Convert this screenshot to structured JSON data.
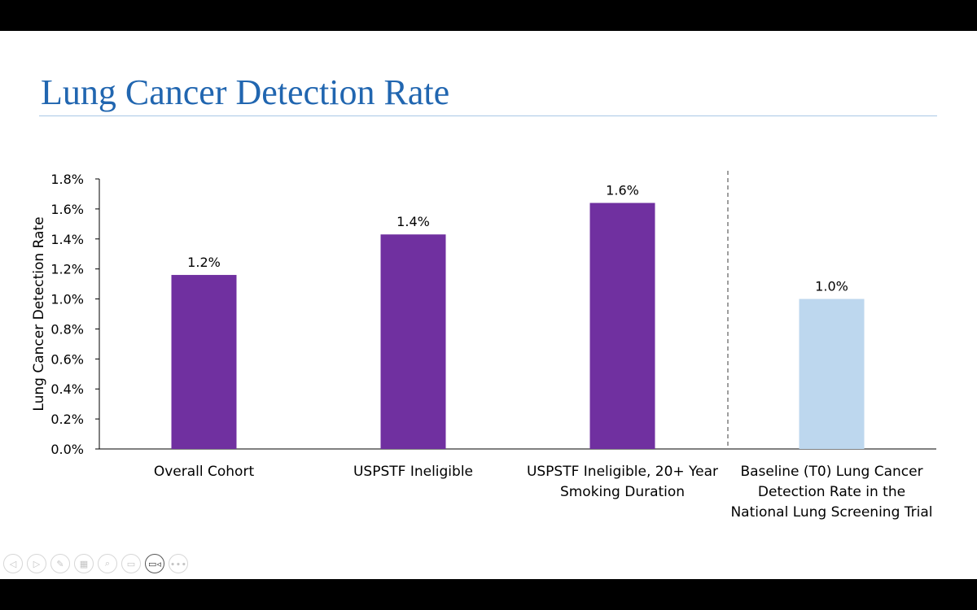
{
  "slide": {
    "title": "Lung Cancer Detection Rate"
  },
  "chart_data": {
    "type": "bar",
    "title": "",
    "xlabel": "",
    "ylabel": "Lung Cancer Detection Rate",
    "ylim": [
      0,
      1.8
    ],
    "yticks": [
      "0.0%",
      "0.2%",
      "0.4%",
      "0.6%",
      "0.8%",
      "1.0%",
      "1.2%",
      "1.4%",
      "1.6%",
      "1.8%"
    ],
    "grid": false,
    "legend": "none",
    "categories": [
      [
        "Overall Cohort"
      ],
      [
        "USPSTF Ineligible"
      ],
      [
        "USPSTF Ineligible, 20+ Year",
        "Smoking Duration"
      ],
      [
        "Baseline (T0) Lung Cancer",
        "Detection Rate in the",
        "National Lung Screening Trial"
      ]
    ],
    "values": [
      1.16,
      1.43,
      1.64,
      1.0
    ],
    "data_labels": [
      "1.2%",
      "1.4%",
      "1.6%",
      "1.0%"
    ],
    "colors": [
      "#7030a0",
      "#7030a0",
      "#7030a0",
      "#bdd7ee"
    ],
    "separator": "dashed vertical line between the third and fourth bars"
  },
  "toolbar": {
    "buttons": [
      {
        "icon": "previous-icon",
        "glyph": "◁"
      },
      {
        "icon": "next-icon",
        "glyph": "▷"
      },
      {
        "icon": "pen-icon",
        "glyph": "✎"
      },
      {
        "icon": "slides-icon",
        "glyph": "▦"
      },
      {
        "icon": "zoom-icon",
        "glyph": "⌕"
      },
      {
        "icon": "subtitles-icon",
        "glyph": "▭"
      },
      {
        "icon": "camera-icon",
        "glyph": "▭◃"
      },
      {
        "icon": "more-icon",
        "glyph": "∙∙∙"
      }
    ]
  }
}
